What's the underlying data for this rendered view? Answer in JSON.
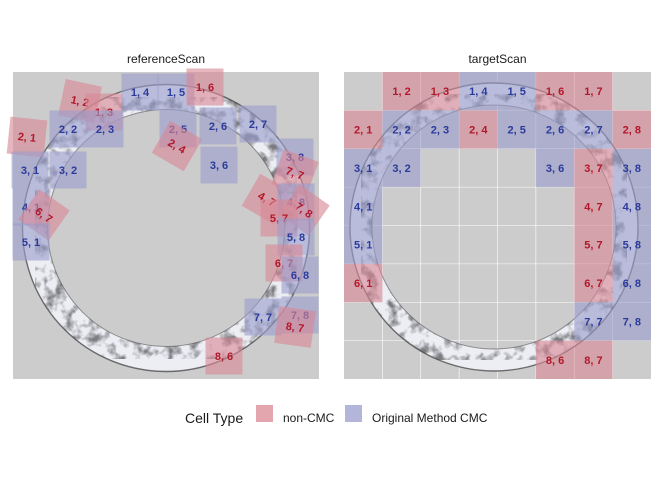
{
  "chart_data": {
    "type": "heatmap",
    "panels": [
      {
        "title": "referenceScan",
        "cells": [
          {
            "label": "1, 2",
            "type": "non-CMC",
            "rot": 12
          },
          {
            "label": "1, 3",
            "type": "non-CMC",
            "rot": 0
          },
          {
            "label": "1, 4",
            "type": "CMC",
            "rot": 0
          },
          {
            "label": "1, 5",
            "type": "CMC",
            "rot": 0
          },
          {
            "label": "1, 6",
            "type": "non-CMC",
            "rot": 0
          },
          {
            "label": "2, 1",
            "type": "non-CMC",
            "rot": 6
          },
          {
            "label": "2, 2",
            "type": "CMC",
            "rot": 0
          },
          {
            "label": "2, 3",
            "type": "CMC",
            "rot": 0
          },
          {
            "label": "2, 5",
            "type": "CMC",
            "rot": 0
          },
          {
            "label": "2, 4",
            "type": "non-CMC",
            "rot": 30
          },
          {
            "label": "2, 6",
            "type": "CMC",
            "rot": 0
          },
          {
            "label": "2, 7",
            "type": "CMC",
            "rot": 0
          },
          {
            "label": "3, 1",
            "type": "CMC",
            "rot": 0
          },
          {
            "label": "3, 2",
            "type": "CMC",
            "rot": 0
          },
          {
            "label": "3, 6",
            "type": "CMC",
            "rot": 0
          },
          {
            "label": "3, 8",
            "type": "CMC",
            "rot": 0
          },
          {
            "label": "7, 7",
            "type": "non-CMC",
            "rot": 20
          },
          {
            "label": "4, 1",
            "type": "CMC",
            "rot": 0
          },
          {
            "label": "6, 7",
            "type": "non-CMC",
            "rot": 35
          },
          {
            "label": "4, 7",
            "type": "non-CMC",
            "rot": 30
          },
          {
            "label": "4, 8",
            "type": "CMC",
            "rot": 0
          },
          {
            "label": "7, 8",
            "type": "non-CMC",
            "rot": 35
          },
          {
            "label": "5, 7",
            "type": "non-CMC",
            "rot": 0
          },
          {
            "label": "5, 1",
            "type": "CMC",
            "rot": 0
          },
          {
            "label": "5, 8",
            "type": "CMC",
            "rot": 0
          },
          {
            "label": "6, 7",
            "type": "non-CMC",
            "rot": 0
          },
          {
            "label": "6, 8",
            "type": "CMC",
            "rot": 0
          },
          {
            "label": "7, 7",
            "type": "CMC",
            "rot": 0
          },
          {
            "label": "7, 8",
            "type": "CMC",
            "rot": 0
          },
          {
            "label": "8, 7",
            "type": "non-CMC",
            "rot": 8
          },
          {
            "label": "8, 6",
            "type": "non-CMC",
            "rot": 0
          }
        ]
      },
      {
        "title": "targetScan",
        "cells": [
          {
            "label": "1, 2",
            "type": "non-CMC",
            "row": 1,
            "col": 2
          },
          {
            "label": "1, 3",
            "type": "non-CMC",
            "row": 1,
            "col": 3
          },
          {
            "label": "1, 4",
            "type": "CMC",
            "row": 1,
            "col": 4
          },
          {
            "label": "1, 5",
            "type": "CMC",
            "row": 1,
            "col": 5
          },
          {
            "label": "1, 6",
            "type": "non-CMC",
            "row": 1,
            "col": 6
          },
          {
            "label": "1, 7",
            "type": "non-CMC",
            "row": 1,
            "col": 7
          },
          {
            "label": "2, 1",
            "type": "non-CMC",
            "row": 2,
            "col": 1
          },
          {
            "label": "2, 2",
            "type": "CMC",
            "row": 2,
            "col": 2
          },
          {
            "label": "2, 3",
            "type": "CMC",
            "row": 2,
            "col": 3
          },
          {
            "label": "2, 4",
            "type": "non-CMC",
            "row": 2,
            "col": 4
          },
          {
            "label": "2, 5",
            "type": "CMC",
            "row": 2,
            "col": 5
          },
          {
            "label": "2, 6",
            "type": "CMC",
            "row": 2,
            "col": 6
          },
          {
            "label": "2, 7",
            "type": "CMC",
            "row": 2,
            "col": 7
          },
          {
            "label": "2, 8",
            "type": "non-CMC",
            "row": 2,
            "col": 8
          },
          {
            "label": "3, 1",
            "type": "CMC",
            "row": 3,
            "col": 1
          },
          {
            "label": "3, 2",
            "type": "CMC",
            "row": 3,
            "col": 2
          },
          {
            "label": "3, 6",
            "type": "CMC",
            "row": 3,
            "col": 6
          },
          {
            "label": "3, 7",
            "type": "non-CMC",
            "row": 3,
            "col": 7
          },
          {
            "label": "3, 8",
            "type": "CMC",
            "row": 3,
            "col": 8
          },
          {
            "label": "4, 1",
            "type": "CMC",
            "row": 4,
            "col": 1
          },
          {
            "label": "4, 7",
            "type": "non-CMC",
            "row": 4,
            "col": 7
          },
          {
            "label": "4, 8",
            "type": "CMC",
            "row": 4,
            "col": 8
          },
          {
            "label": "5, 1",
            "type": "CMC",
            "row": 5,
            "col": 1
          },
          {
            "label": "5, 7",
            "type": "non-CMC",
            "row": 5,
            "col": 7
          },
          {
            "label": "5, 8",
            "type": "CMC",
            "row": 5,
            "col": 8
          },
          {
            "label": "6, 1",
            "type": "non-CMC",
            "row": 6,
            "col": 1
          },
          {
            "label": "6, 7",
            "type": "non-CMC",
            "row": 6,
            "col": 7
          },
          {
            "label": "6, 8",
            "type": "CMC",
            "row": 6,
            "col": 8
          },
          {
            "label": "7, 7",
            "type": "CMC",
            "row": 7,
            "col": 7
          },
          {
            "label": "7, 8",
            "type": "CMC",
            "row": 7,
            "col": 8
          },
          {
            "label": "8, 6",
            "type": "non-CMC",
            "row": 8,
            "col": 6
          },
          {
            "label": "8, 7",
            "type": "non-CMC",
            "row": 8,
            "col": 7
          }
        ]
      }
    ],
    "legend": {
      "title": "Cell Type",
      "position": "bottom",
      "items": [
        {
          "key": "non-CMC",
          "label": "non-CMC",
          "fill": "#d98894",
          "text": "#b2182b"
        },
        {
          "key": "CMC",
          "label": "Original Method CMC",
          "fill": "#9a9ccc",
          "text": "#2b3a9b"
        }
      ]
    },
    "colors": {
      "panel_bg": "#cccccc",
      "scan_light": "#eceef4",
      "scan_dark": "#3a3a3a"
    }
  }
}
